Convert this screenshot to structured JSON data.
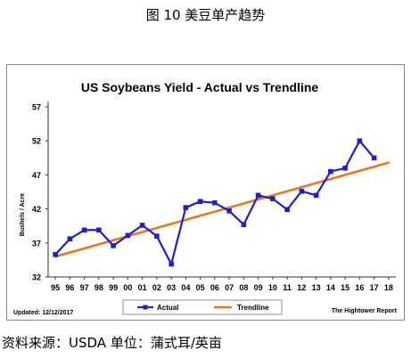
{
  "caption": "图 10 美豆单产趋势",
  "source_note": "资料来源：USDA 单位：蒲式耳/英亩",
  "chart_data": {
    "type": "line",
    "title": "US Soybeans Yield - Actual vs Trendline",
    "ylabel": "Bushels / Acre",
    "xlabel": "",
    "ylim": [
      32,
      57
    ],
    "yticks": [
      32,
      37,
      42,
      47,
      52,
      57
    ],
    "grid": false,
    "legend": "bottom-center",
    "categories": [
      "95",
      "96",
      "97",
      "98",
      "99",
      "00",
      "01",
      "02",
      "03",
      "04",
      "05",
      "06",
      "07",
      "08",
      "09",
      "10",
      "11",
      "12",
      "13",
      "14",
      "15",
      "16",
      "17",
      "18"
    ],
    "series": [
      {
        "name": "Actual",
        "color": "#1f1fcc",
        "values": [
          35.3,
          37.6,
          38.9,
          38.9,
          36.6,
          38.1,
          39.6,
          38.0,
          33.9,
          42.2,
          43.1,
          42.9,
          41.7,
          39.7,
          44.0,
          43.5,
          41.9,
          44.6,
          44.0,
          47.5,
          48.0,
          52.0,
          49.5,
          null
        ]
      },
      {
        "name": "Trendline",
        "color": "#e87722",
        "values": [
          35.0,
          null,
          null,
          null,
          null,
          null,
          null,
          null,
          null,
          null,
          null,
          null,
          null,
          null,
          null,
          null,
          null,
          null,
          null,
          null,
          null,
          null,
          null,
          48.8
        ]
      }
    ],
    "footer_left": "Updated: 12/12/2017",
    "footer_right": "The Hightower Report"
  }
}
